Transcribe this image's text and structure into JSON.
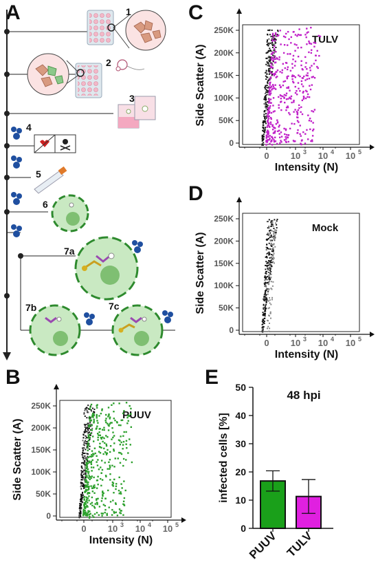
{
  "panels": {
    "A": "A",
    "B": "B",
    "C": "C",
    "D": "D",
    "E": "E"
  },
  "schematic": {
    "steps": [
      "1",
      "2",
      "3",
      "4",
      "5",
      "6",
      "7a",
      "7b",
      "7c"
    ]
  },
  "flow_common": {
    "ylabel": "Side Scatter (A)",
    "xlabel": "Intensity (N)",
    "yticks": [
      "250K",
      "200K",
      "150K",
      "100K",
      "50K",
      "0"
    ],
    "xticks": [
      "0",
      "10",
      "3",
      "10",
      "4",
      "10",
      "5"
    ]
  },
  "flow_plots": {
    "C": {
      "title": "TULV",
      "color": "#c020c8"
    },
    "D": {
      "title": "Mock",
      "color": "#777777"
    },
    "B": {
      "title": "PUUV",
      "color": "#2ca02c"
    }
  },
  "chart_data": {
    "type": "bar",
    "title": "48 hpi",
    "ylabel": "infected cells [%]",
    "categories": [
      "PUUV",
      "TULV"
    ],
    "values": [
      16.8,
      11.3
    ],
    "error": [
      3.6,
      6.0
    ],
    "colors": [
      "#1aa01a",
      "#e020e0"
    ],
    "ylim": [
      0,
      50
    ],
    "yticks": [
      "0",
      "10",
      "20",
      "30",
      "40",
      "50"
    ]
  }
}
